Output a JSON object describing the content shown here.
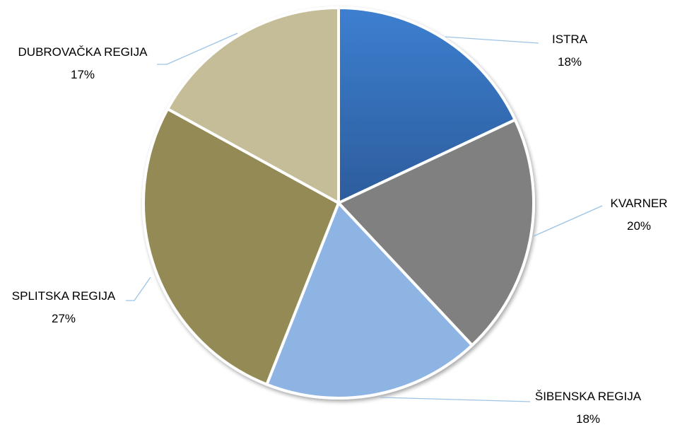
{
  "chart_data": {
    "type": "pie",
    "title": "",
    "legend": "none",
    "slices": [
      {
        "label": "ISTRA",
        "percent_text": "18%",
        "value": 18,
        "color": "#3A78C8",
        "color_dark": "#2D5FA0"
      },
      {
        "label": "KVARNER",
        "percent_text": "20%",
        "value": 20,
        "color": "#808080",
        "color_dark": "#7A7A7A"
      },
      {
        "label": "ŠIBENSKA REGIJA",
        "percent_text": "18%",
        "value": 18,
        "color": "#8EB4E3",
        "color_dark": "#8EB4E3"
      },
      {
        "label": "SPLITSKA REGIJA",
        "percent_text": "27%",
        "value": 27,
        "color": "#948A54",
        "color_dark": "#948A54"
      },
      {
        "label": "DUBROVAČKA REGIJA",
        "percent_text": "17%",
        "value": 17,
        "color": "#C4BD97",
        "color_dark": "#C4BD97"
      }
    ],
    "leader_line_color": "#9DC3E6"
  }
}
